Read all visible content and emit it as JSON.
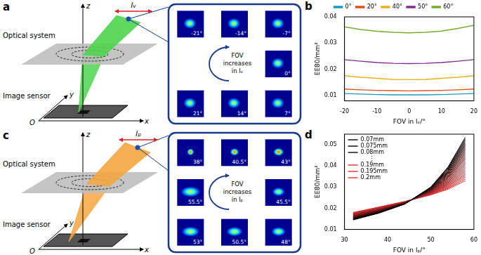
{
  "diagrams": [
    {
      "panel_label": "a",
      "optical_system": "Optical system",
      "image_sensor": "Image sensor",
      "axis_labels": {
        "x": "x",
        "y": "y",
        "z": "z",
        "origin": "O"
      },
      "direction": "lᵥ",
      "color": "#4cd44c",
      "inset_text": [
        "FOV",
        "increases",
        "in lᵥ"
      ],
      "psf_grid": [
        [
          "-21°",
          "-14°",
          "-7°"
        ],
        [
          null,
          null,
          "0°"
        ],
        [
          "21°",
          "14°",
          "7°"
        ]
      ]
    },
    {
      "panel_label": "c",
      "optical_system": "Optical system",
      "image_sensor": "Image sensor",
      "axis_labels": {
        "x": "x",
        "y": "y",
        "z": "z",
        "origin": "O"
      },
      "direction": "lₚ",
      "color": "#f4a640",
      "inset_text": [
        "FOV",
        "increases",
        "in lₚ"
      ],
      "psf_grid": [
        [
          "38°",
          "40.5°",
          "43°"
        ],
        [
          "55.5°",
          null,
          "45.5°"
        ],
        [
          "53°",
          "50.5°",
          "48°"
        ]
      ]
    }
  ],
  "chart_data": [
    {
      "panel_label": "b",
      "type": "line",
      "xlabel": "FOV in lᵥ/°",
      "ylabel": "EE80/mm²",
      "x": [
        -20,
        -15,
        -10,
        -5,
        0,
        5,
        10,
        15,
        20
      ],
      "series": [
        {
          "name": "0°",
          "color": "#1a9bbd",
          "values": [
            0.0108,
            0.0106,
            0.0104,
            0.0103,
            0.0103,
            0.0103,
            0.0104,
            0.0106,
            0.0108
          ]
        },
        {
          "name": "20°",
          "color": "#e0501e",
          "values": [
            0.0125,
            0.0122,
            0.012,
            0.0119,
            0.0118,
            0.0119,
            0.012,
            0.0122,
            0.0125
          ]
        },
        {
          "name": "40°",
          "color": "#eab020",
          "values": [
            0.0176,
            0.017,
            0.0166,
            0.0162,
            0.0161,
            0.0162,
            0.0166,
            0.017,
            0.0176
          ]
        },
        {
          "name": "50°",
          "color": "#7e2f8e",
          "values": [
            0.0237,
            0.0231,
            0.0226,
            0.0223,
            0.0222,
            0.0223,
            0.0226,
            0.0231,
            0.0237
          ]
        },
        {
          "name": "60°",
          "color": "#77ac30",
          "values": [
            0.0362,
            0.0352,
            0.0345,
            0.0341,
            0.0339,
            0.0341,
            0.0346,
            0.0356,
            0.0368
          ]
        }
      ],
      "xlim": [
        -20,
        20
      ],
      "xticks": [
        -20,
        -10,
        0,
        10,
        20
      ],
      "ylim": [
        0.008,
        0.04
      ],
      "yticks": [
        0.01,
        0.02,
        0.03,
        0.04
      ],
      "grid": false,
      "legend": "top"
    },
    {
      "panel_label": "d",
      "type": "line",
      "xlabel": "FOV in lₚ/°",
      "ylabel": "EE80/mm²",
      "x": [
        32,
        38,
        44,
        50,
        54,
        58
      ],
      "series": [
        {
          "name": "0.07mm",
          "color": "#000000",
          "values": [
            0.0145,
            0.0177,
            0.022,
            0.03,
            0.0395,
            0.0535
          ]
        },
        {
          "name": "0.075mm",
          "color": "#090202",
          "values": [
            0.0146,
            0.0178,
            0.022,
            0.0299,
            0.0391,
            0.0527
          ]
        },
        {
          "name": "0.08mm",
          "color": "#120404",
          "values": [
            0.0148,
            0.0179,
            0.0221,
            0.0297,
            0.0387,
            0.0519
          ]
        },
        {
          "color": "#1b0606",
          "values": [
            0.0149,
            0.018,
            0.0221,
            0.0296,
            0.0383,
            0.0511
          ]
        },
        {
          "color": "#230808",
          "values": [
            0.015,
            0.0181,
            0.0222,
            0.0294,
            0.0379,
            0.0503
          ]
        },
        {
          "color": "#2c0a0a",
          "values": [
            0.0152,
            0.0183,
            0.0222,
            0.0293,
            0.0375,
            0.0496
          ]
        },
        {
          "color": "#350c0c",
          "values": [
            0.0153,
            0.0184,
            0.0223,
            0.0291,
            0.0371,
            0.0488
          ]
        },
        {
          "color": "#3e0d0d",
          "values": [
            0.0154,
            0.0185,
            0.0223,
            0.029,
            0.0367,
            0.048
          ]
        },
        {
          "color": "#470f0f",
          "values": [
            0.0156,
            0.0186,
            0.0224,
            0.0289,
            0.0363,
            0.0472
          ]
        },
        {
          "color": "#501111",
          "values": [
            0.0157,
            0.0187,
            0.0224,
            0.0287,
            0.0359,
            0.0464
          ]
        },
        {
          "color": "#581313",
          "values": [
            0.0159,
            0.0188,
            0.0225,
            0.0286,
            0.0355,
            0.0456
          ]
        },
        {
          "color": "#611515",
          "values": [
            0.016,
            0.0189,
            0.0225,
            0.0284,
            0.0351,
            0.0448
          ]
        },
        {
          "color": "#6a1717",
          "values": [
            0.0161,
            0.019,
            0.0226,
            0.0283,
            0.0347,
            0.044
          ]
        },
        {
          "color": "#731919",
          "values": [
            0.0163,
            0.0192,
            0.0226,
            0.0282,
            0.0343,
            0.0433
          ]
        },
        {
          "color": "#7c1b1b",
          "values": [
            0.0164,
            0.0193,
            0.0226,
            0.028,
            0.0339,
            0.0425
          ]
        },
        {
          "color": "#851d1d",
          "values": [
            0.0165,
            0.0194,
            0.0227,
            0.0279,
            0.0334,
            0.0417
          ]
        },
        {
          "color": "#8e1f1f",
          "values": [
            0.0167,
            0.0195,
            0.0227,
            0.0277,
            0.033,
            0.0409
          ]
        },
        {
          "color": "#962121",
          "values": [
            0.0168,
            0.0196,
            0.0228,
            0.0276,
            0.0326,
            0.0401
          ]
        },
        {
          "color": "#9f2323",
          "values": [
            0.0169,
            0.0197,
            0.0228,
            0.0274,
            0.0322,
            0.0393
          ]
        },
        {
          "color": "#a82525",
          "values": [
            0.0171,
            0.0198,
            0.0229,
            0.0273,
            0.0318,
            0.0385
          ]
        },
        {
          "color": "#b12626",
          "values": [
            0.0172,
            0.0199,
            0.0229,
            0.0272,
            0.0314,
            0.0377
          ]
        },
        {
          "color": "#ba2828",
          "values": [
            0.0173,
            0.02,
            0.023,
            0.027,
            0.031,
            0.0369
          ]
        },
        {
          "color": "#c32a2a",
          "values": [
            0.0175,
            0.0202,
            0.023,
            0.0269,
            0.0306,
            0.0361
          ]
        },
        {
          "color": "#cb2c2c",
          "values": [
            0.0176,
            0.0203,
            0.0231,
            0.0267,
            0.0302,
            0.0354
          ]
        },
        {
          "name": "0.19mm",
          "color": "#d42e2e",
          "values": [
            0.0177,
            0.0204,
            0.0231,
            0.0266,
            0.0298,
            0.0346
          ]
        },
        {
          "name": "0.195mm",
          "color": "#dd3030",
          "values": [
            0.0179,
            0.0205,
            0.0232,
            0.0264,
            0.0294,
            0.0338
          ]
        },
        {
          "name": "0.2mm",
          "color": "#e63232",
          "values": [
            0.018,
            0.0206,
            0.0232,
            0.0263,
            0.029,
            0.033
          ]
        }
      ],
      "legend_ellipsis": "⋮",
      "xlim": [
        30,
        60
      ],
      "xticks": [
        30,
        40,
        50,
        60
      ],
      "ylim": [
        0.01,
        0.055
      ],
      "yticks": [
        0.01,
        0.02,
        0.03,
        0.04,
        0.05
      ],
      "grid": false,
      "legend": "upper left"
    }
  ]
}
